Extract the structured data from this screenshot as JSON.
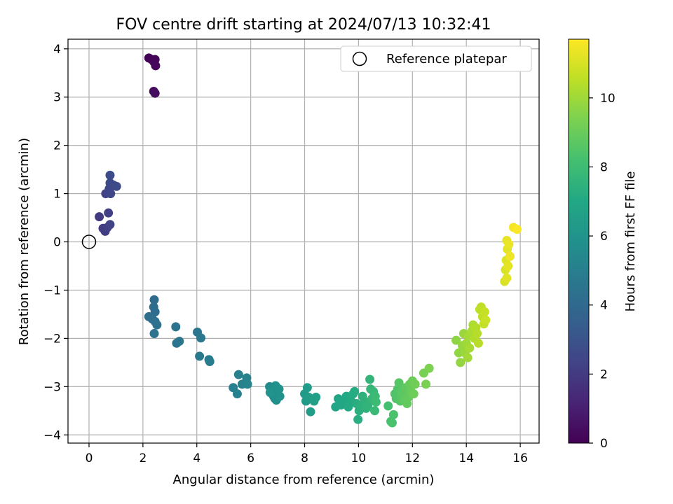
{
  "chart_data": {
    "type": "scatter",
    "title": "FOV centre drift starting at 2024/07/13 10:32:41",
    "xlabel": "Angular distance from reference (arcmin)",
    "ylabel": "Rotation from reference (arcmin)",
    "xlim": [
      -0.78,
      16.7
    ],
    "ylim": [
      -4.17,
      4.2
    ],
    "xticks": [
      0,
      2,
      4,
      6,
      8,
      10,
      12,
      14,
      16
    ],
    "yticks": [
      -4,
      -3,
      -2,
      -1,
      0,
      1,
      2,
      3,
      4
    ],
    "grid": true,
    "legend": {
      "position": "top-right",
      "entries": [
        "Reference platepar"
      ]
    },
    "reference_point": {
      "x": 0,
      "y": 0,
      "label": "Reference platepar"
    },
    "colorbar": {
      "label": "Hours from first FF file",
      "range": [
        0,
        11.7
      ],
      "ticks": [
        0,
        2,
        4,
        6,
        8,
        10
      ],
      "colormap": [
        "#440154",
        "#482475",
        "#414487",
        "#355f8d",
        "#2a788e",
        "#21918c",
        "#22a884",
        "#44bf70",
        "#7ad151",
        "#bddf26",
        "#fde725"
      ]
    },
    "points": [
      {
        "x": 2.22,
        "y": 3.81,
        "t": 0.05
      },
      {
        "x": 2.32,
        "y": 3.78,
        "t": 0.1
      },
      {
        "x": 2.45,
        "y": 3.78,
        "t": 0.15
      },
      {
        "x": 2.42,
        "y": 3.72,
        "t": 0.2
      },
      {
        "x": 2.47,
        "y": 3.65,
        "t": 0.25
      },
      {
        "x": 2.4,
        "y": 3.12,
        "t": 0.35
      },
      {
        "x": 2.45,
        "y": 3.08,
        "t": 0.4
      },
      {
        "x": 0.38,
        "y": 0.52,
        "t": 2.0
      },
      {
        "x": 0.52,
        "y": 0.28,
        "t": 2.05
      },
      {
        "x": 0.6,
        "y": 0.22,
        "t": 2.1
      },
      {
        "x": 0.68,
        "y": 0.3,
        "t": 2.15
      },
      {
        "x": 0.72,
        "y": 0.6,
        "t": 2.2
      },
      {
        "x": 0.78,
        "y": 0.36,
        "t": 2.25
      },
      {
        "x": 0.62,
        "y": 1.0,
        "t": 2.3
      },
      {
        "x": 0.7,
        "y": 1.02,
        "t": 2.35
      },
      {
        "x": 0.75,
        "y": 1.1,
        "t": 2.4
      },
      {
        "x": 0.8,
        "y": 1.0,
        "t": 2.45
      },
      {
        "x": 0.85,
        "y": 1.15,
        "t": 2.5
      },
      {
        "x": 0.9,
        "y": 1.18,
        "t": 2.55
      },
      {
        "x": 0.78,
        "y": 1.22,
        "t": 2.6
      },
      {
        "x": 1.02,
        "y": 1.15,
        "t": 2.65
      },
      {
        "x": 0.78,
        "y": 1.38,
        "t": 2.7
      },
      {
        "x": 2.42,
        "y": -1.2,
        "t": 4.05
      },
      {
        "x": 2.4,
        "y": -1.35,
        "t": 4.1
      },
      {
        "x": 2.45,
        "y": -1.45,
        "t": 4.15
      },
      {
        "x": 2.22,
        "y": -1.55,
        "t": 4.2
      },
      {
        "x": 2.35,
        "y": -1.6,
        "t": 4.25
      },
      {
        "x": 2.45,
        "y": -1.65,
        "t": 4.3
      },
      {
        "x": 2.52,
        "y": -1.72,
        "t": 4.35
      },
      {
        "x": 2.42,
        "y": -1.9,
        "t": 4.4
      },
      {
        "x": 3.22,
        "y": -1.76,
        "t": 4.45
      },
      {
        "x": 3.25,
        "y": -2.1,
        "t": 4.5
      },
      {
        "x": 3.35,
        "y": -2.06,
        "t": 4.55
      },
      {
        "x": 4.02,
        "y": -1.87,
        "t": 4.6
      },
      {
        "x": 4.15,
        "y": -1.99,
        "t": 4.65
      },
      {
        "x": 4.1,
        "y": -2.37,
        "t": 4.7
      },
      {
        "x": 4.45,
        "y": -2.44,
        "t": 4.75
      },
      {
        "x": 4.48,
        "y": -2.48,
        "t": 4.8
      },
      {
        "x": 5.35,
        "y": -3.02,
        "t": 5.0
      },
      {
        "x": 5.5,
        "y": -3.15,
        "t": 5.05
      },
      {
        "x": 5.55,
        "y": -2.75,
        "t": 5.1
      },
      {
        "x": 5.68,
        "y": -2.95,
        "t": 5.15
      },
      {
        "x": 5.85,
        "y": -2.82,
        "t": 5.2
      },
      {
        "x": 5.88,
        "y": -2.95,
        "t": 5.25
      },
      {
        "x": 6.7,
        "y": -3.0,
        "t": 5.55
      },
      {
        "x": 6.75,
        "y": -3.08,
        "t": 5.6
      },
      {
        "x": 6.8,
        "y": -3.15,
        "t": 5.65
      },
      {
        "x": 6.85,
        "y": -3.2,
        "t": 5.7
      },
      {
        "x": 6.9,
        "y": -3.25,
        "t": 5.75
      },
      {
        "x": 6.95,
        "y": -3.28,
        "t": 5.8
      },
      {
        "x": 6.92,
        "y": -2.98,
        "t": 5.85
      },
      {
        "x": 7.05,
        "y": -3.05,
        "t": 5.9
      },
      {
        "x": 7.08,
        "y": -3.2,
        "t": 5.95
      },
      {
        "x": 6.72,
        "y": -3.12,
        "t": 6.0
      },
      {
        "x": 8.0,
        "y": -3.15,
        "t": 6.3
      },
      {
        "x": 8.05,
        "y": -3.3,
        "t": 6.35
      },
      {
        "x": 8.1,
        "y": -3.02,
        "t": 6.4
      },
      {
        "x": 8.15,
        "y": -3.22,
        "t": 6.45
      },
      {
        "x": 8.22,
        "y": -3.52,
        "t": 6.5
      },
      {
        "x": 8.35,
        "y": -3.3,
        "t": 6.55
      },
      {
        "x": 8.42,
        "y": -3.22,
        "t": 6.6
      },
      {
        "x": 9.15,
        "y": -3.42,
        "t": 6.8
      },
      {
        "x": 9.25,
        "y": -3.25,
        "t": 6.85
      },
      {
        "x": 9.35,
        "y": -3.38,
        "t": 6.9
      },
      {
        "x": 9.5,
        "y": -3.32,
        "t": 6.95
      },
      {
        "x": 9.55,
        "y": -3.2,
        "t": 7.0
      },
      {
        "x": 9.62,
        "y": -3.42,
        "t": 7.05
      },
      {
        "x": 9.7,
        "y": -3.28,
        "t": 7.1
      },
      {
        "x": 9.8,
        "y": -3.15,
        "t": 7.15
      },
      {
        "x": 9.85,
        "y": -3.1,
        "t": 7.2
      },
      {
        "x": 9.92,
        "y": -3.35,
        "t": 7.25
      },
      {
        "x": 9.98,
        "y": -3.68,
        "t": 7.3
      },
      {
        "x": 10.02,
        "y": -3.5,
        "t": 7.35
      },
      {
        "x": 10.08,
        "y": -3.4,
        "t": 7.4
      },
      {
        "x": 10.15,
        "y": -3.2,
        "t": 7.45
      },
      {
        "x": 10.22,
        "y": -3.3,
        "t": 7.5
      },
      {
        "x": 10.28,
        "y": -3.45,
        "t": 7.55
      },
      {
        "x": 10.35,
        "y": -3.38,
        "t": 7.6
      },
      {
        "x": 10.42,
        "y": -2.85,
        "t": 7.65
      },
      {
        "x": 10.45,
        "y": -3.05,
        "t": 7.7
      },
      {
        "x": 10.5,
        "y": -3.25,
        "t": 7.75
      },
      {
        "x": 10.55,
        "y": -3.1,
        "t": 7.8
      },
      {
        "x": 10.6,
        "y": -3.5,
        "t": 7.85
      },
      {
        "x": 10.62,
        "y": -3.2,
        "t": 7.9
      },
      {
        "x": 10.65,
        "y": -3.32,
        "t": 7.95
      },
      {
        "x": 11.1,
        "y": -3.4,
        "t": 8.2
      },
      {
        "x": 11.2,
        "y": -3.72,
        "t": 8.25
      },
      {
        "x": 11.25,
        "y": -3.75,
        "t": 8.3
      },
      {
        "x": 11.3,
        "y": -3.58,
        "t": 8.35
      },
      {
        "x": 11.35,
        "y": -3.15,
        "t": 8.4
      },
      {
        "x": 11.4,
        "y": -3.25,
        "t": 8.45
      },
      {
        "x": 11.45,
        "y": -3.05,
        "t": 8.5
      },
      {
        "x": 11.5,
        "y": -2.92,
        "t": 8.55
      },
      {
        "x": 11.55,
        "y": -3.3,
        "t": 8.6
      },
      {
        "x": 11.6,
        "y": -3.18,
        "t": 8.65
      },
      {
        "x": 11.65,
        "y": -3.1,
        "t": 8.7
      },
      {
        "x": 11.7,
        "y": -3.28,
        "t": 8.75
      },
      {
        "x": 11.75,
        "y": -3.02,
        "t": 8.8
      },
      {
        "x": 11.8,
        "y": -3.35,
        "t": 8.85
      },
      {
        "x": 11.85,
        "y": -3.22,
        "t": 8.9
      },
      {
        "x": 11.9,
        "y": -2.95,
        "t": 8.95
      },
      {
        "x": 11.95,
        "y": -3.1,
        "t": 9.0
      },
      {
        "x": 12.0,
        "y": -2.88,
        "t": 9.05
      },
      {
        "x": 12.05,
        "y": -3.15,
        "t": 9.1
      },
      {
        "x": 12.1,
        "y": -2.95,
        "t": 9.15
      },
      {
        "x": 12.42,
        "y": -2.72,
        "t": 9.3
      },
      {
        "x": 12.5,
        "y": -2.95,
        "t": 9.35
      },
      {
        "x": 12.62,
        "y": -2.62,
        "t": 9.4
      },
      {
        "x": 13.62,
        "y": -2.04,
        "t": 9.7
      },
      {
        "x": 13.72,
        "y": -2.3,
        "t": 9.75
      },
      {
        "x": 13.78,
        "y": -2.5,
        "t": 9.8
      },
      {
        "x": 13.85,
        "y": -2.15,
        "t": 9.85
      },
      {
        "x": 13.9,
        "y": -1.9,
        "t": 9.9
      },
      {
        "x": 13.95,
        "y": -2.3,
        "t": 9.95
      },
      {
        "x": 14.0,
        "y": -2.1,
        "t": 10.0
      },
      {
        "x": 14.05,
        "y": -2.4,
        "t": 10.05
      },
      {
        "x": 14.08,
        "y": -1.95,
        "t": 10.1
      },
      {
        "x": 14.12,
        "y": -2.2,
        "t": 10.15
      },
      {
        "x": 14.2,
        "y": -1.85,
        "t": 10.2
      },
      {
        "x": 14.25,
        "y": -1.72,
        "t": 10.25
      },
      {
        "x": 14.3,
        "y": -2.0,
        "t": 10.3
      },
      {
        "x": 14.35,
        "y": -1.78,
        "t": 10.35
      },
      {
        "x": 14.4,
        "y": -1.9,
        "t": 10.4
      },
      {
        "x": 14.45,
        "y": -2.1,
        "t": 10.45
      },
      {
        "x": 14.5,
        "y": -1.4,
        "t": 10.5
      },
      {
        "x": 14.55,
        "y": -1.35,
        "t": 10.55
      },
      {
        "x": 14.6,
        "y": -1.55,
        "t": 10.6
      },
      {
        "x": 14.65,
        "y": -1.7,
        "t": 10.65
      },
      {
        "x": 14.68,
        "y": -1.45,
        "t": 10.7
      },
      {
        "x": 14.72,
        "y": -1.62,
        "t": 10.75
      },
      {
        "x": 15.42,
        "y": -0.82,
        "t": 11.0
      },
      {
        "x": 15.45,
        "y": -0.58,
        "t": 11.05
      },
      {
        "x": 15.48,
        "y": -0.38,
        "t": 11.1
      },
      {
        "x": 15.5,
        "y": -0.75,
        "t": 11.15
      },
      {
        "x": 15.52,
        "y": -0.15,
        "t": 11.2
      },
      {
        "x": 15.55,
        "y": -0.5,
        "t": 11.25
      },
      {
        "x": 15.5,
        "y": 0.03,
        "t": 11.3
      },
      {
        "x": 15.58,
        "y": -0.05,
        "t": 11.35
      },
      {
        "x": 15.62,
        "y": -0.3,
        "t": 11.4
      },
      {
        "x": 15.75,
        "y": 0.3,
        "t": 11.55
      },
      {
        "x": 15.88,
        "y": 0.26,
        "t": 11.65
      }
    ]
  }
}
